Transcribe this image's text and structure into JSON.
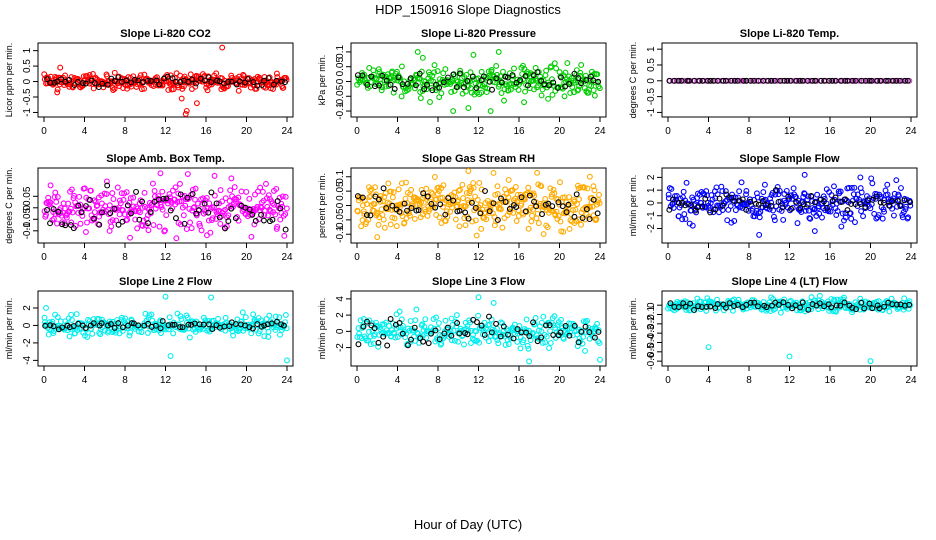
{
  "title": "HDP_150916  Slope Diagnostics",
  "xlabel": "Hour of Day (UTC)",
  "chart_data": [
    {
      "type": "scatter",
      "title": "Slope Li-820 CO2",
      "ylabel": "Licor ppm per min.",
      "color": "#ff0000",
      "xlim": [
        0,
        24
      ],
      "xticks": [
        0,
        4,
        8,
        12,
        16,
        20,
        24
      ],
      "ylim": [
        -1.05,
        1.15
      ],
      "yticks": [
        -1.0,
        -0.5,
        0.0,
        0.5,
        1.0
      ],
      "center": 0,
      "spread": 0.12,
      "black_spread": 0.08,
      "n": 320,
      "n_black": 60,
      "outliers": [
        [
          13.6,
          -0.55
        ],
        [
          14.0,
          -1.05
        ],
        [
          14.1,
          -0.95
        ],
        [
          15.1,
          -0.7
        ],
        [
          17.6,
          1.1
        ],
        [
          1.3,
          -0.35
        ],
        [
          1.6,
          0.45
        ]
      ]
    },
    {
      "type": "scatter",
      "title": "Slope Li-820 Pressure",
      "ylabel": "kPa per min.",
      "color": "#00cc00",
      "xlim": [
        0,
        24
      ],
      "xticks": [
        0,
        4,
        8,
        12,
        16,
        20,
        24
      ],
      "ylim": [
        -0.11,
        0.12
      ],
      "yticks": [
        -0.1,
        -0.05,
        0.0,
        0.05,
        0.1
      ],
      "center": 0,
      "spread": 0.025,
      "black_spread": 0.015,
      "n": 320,
      "n_black": 60,
      "outliers": [
        [
          9.5,
          -0.1
        ],
        [
          11.0,
          -0.09
        ],
        [
          13.2,
          -0.1
        ],
        [
          6.0,
          0.1
        ],
        [
          6.5,
          0.08
        ],
        [
          11.5,
          0.09
        ],
        [
          14.0,
          0.1
        ],
        [
          16.5,
          -0.07
        ]
      ]
    },
    {
      "type": "scatter",
      "title": "Slope Li-820 Temp.",
      "ylabel": "degrees C per min.",
      "color": "#cc44cc",
      "xlim": [
        0,
        24
      ],
      "xticks": [
        0,
        4,
        8,
        12,
        16,
        20,
        24
      ],
      "ylim": [
        -1.05,
        1.1
      ],
      "yticks": [
        -1.0,
        -0.5,
        0.0,
        0.5,
        1.0
      ],
      "center": 0,
      "spread": 0.0,
      "black_spread": 0.0,
      "n": 90,
      "n_black": 60,
      "outliers": []
    },
    {
      "type": "scatter",
      "title": "Slope Amb. Box Temp.",
      "ylabel": "degrees C per min.",
      "color": "#ff00ff",
      "xlim": [
        0,
        24
      ],
      "xticks": [
        0,
        4,
        8,
        12,
        16,
        20,
        24
      ],
      "ylim": [
        -0.14,
        0.16
      ],
      "yticks": [
        -0.1,
        -0.05,
        0.0,
        0.05
      ],
      "center": 0,
      "spread": 0.05,
      "black_spread": 0.04,
      "n": 340,
      "n_black": 60,
      "outliers": [
        [
          8.5,
          -0.13
        ],
        [
          11.5,
          0.15
        ]
      ]
    },
    {
      "type": "scatter",
      "title": "Slope Gas Stream RH",
      "ylabel": "percent per min.",
      "color": "#ffaa00",
      "xlim": [
        0,
        24
      ],
      "xticks": [
        0,
        4,
        8,
        12,
        16,
        20,
        24
      ],
      "ylim": [
        -0.12,
        0.12
      ],
      "yticks": [
        -0.1,
        -0.05,
        0.0,
        0.05,
        0.1
      ],
      "center": 0,
      "spread": 0.04,
      "black_spread": 0.03,
      "n": 380,
      "n_black": 60,
      "outliers": [
        [
          2.0,
          -0.11
        ],
        [
          11.0,
          0.12
        ],
        [
          23.0,
          0.1
        ]
      ]
    },
    {
      "type": "scatter",
      "title": "Slope Sample Flow",
      "ylabel": "ml/min per min.",
      "color": "#0000ff",
      "xlim": [
        0,
        24
      ],
      "xticks": [
        0,
        4,
        8,
        12,
        16,
        20,
        24
      ],
      "ylim": [
        -2.9,
        2.5
      ],
      "yticks": [
        -2,
        -1,
        0,
        1,
        2
      ],
      "center": 0,
      "spread": 0.7,
      "black_spread": 0.35,
      "n": 320,
      "n_black": 60,
      "outliers": [
        [
          9.0,
          -2.5
        ],
        [
          14.5,
          -2.2
        ],
        [
          13.5,
          2.2
        ],
        [
          19.0,
          2.0
        ]
      ]
    },
    {
      "type": "scatter",
      "title": "Slope Line 2 Flow",
      "ylabel": "ml/min per min.",
      "color": "#00eeee",
      "xlim": [
        0,
        24
      ],
      "xticks": [
        0,
        4,
        8,
        12,
        16,
        20,
        24
      ],
      "ylim": [
        -4.3,
        3.6
      ],
      "yticks": [
        -4,
        -2,
        0,
        2
      ],
      "center": 0,
      "spread": 0.6,
      "black_spread": 0.2,
      "n": 300,
      "n_black": 60,
      "outliers": [
        [
          12.5,
          -3.5
        ],
        [
          24.0,
          -4.0
        ],
        [
          12.0,
          3.3
        ],
        [
          16.5,
          3.2
        ],
        [
          0.2,
          2.0
        ]
      ]
    },
    {
      "type": "scatter",
      "title": "Slope Line 3 Flow",
      "ylabel": "ml/min per min.",
      "color": "#00eeee",
      "xlim": [
        0,
        24
      ],
      "xticks": [
        0,
        4,
        8,
        12,
        16,
        20,
        24
      ],
      "ylim": [
        -3.9,
        4.6
      ],
      "yticks": [
        -2,
        0,
        2,
        4
      ],
      "center": 0,
      "spread": 0.9,
      "black_spread": 0.8,
      "n": 300,
      "n_black": 60,
      "outliers": [
        [
          17.0,
          -3.7
        ],
        [
          24.0,
          -3.5
        ],
        [
          12.0,
          4.2
        ],
        [
          13.5,
          3.5
        ]
      ]
    },
    {
      "type": "scatter",
      "title": "Slope Line 4 (LT) Flow",
      "ylabel": "ml/min per min.",
      "color": "#00eeee",
      "xlim": [
        0,
        24
      ],
      "xticks": [
        0,
        4,
        8,
        12,
        16,
        20,
        24
      ],
      "ylim": [
        -0.62,
        0.12
      ],
      "yticks": [
        -0.6,
        -0.5,
        -0.4,
        -0.3,
        -0.2,
        -0.1,
        0.0
      ],
      "center": 0,
      "spread": 0.035,
      "black_spread": 0.025,
      "n": 300,
      "n_black": 60,
      "outliers": [
        [
          4.0,
          -0.45
        ],
        [
          12.0,
          -0.55
        ],
        [
          20.0,
          -0.6
        ],
        [
          15.0,
          0.1
        ]
      ]
    }
  ]
}
